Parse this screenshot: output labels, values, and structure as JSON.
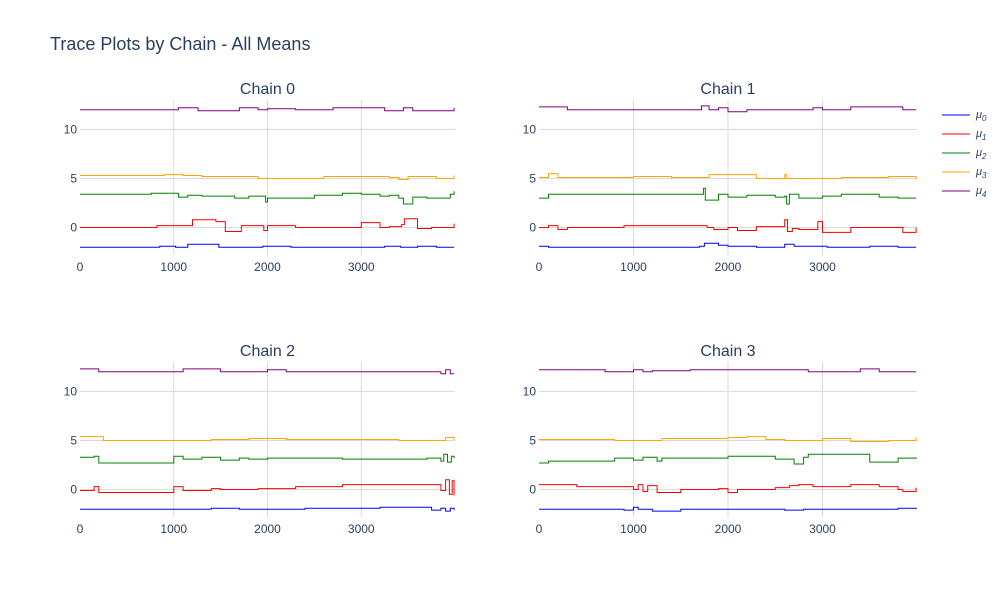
{
  "figure": {
    "title": "Trace Plots by Chain - All Means"
  },
  "chart_data": {
    "type": "line",
    "title": "Trace Plots by Chain - All Means",
    "legend_position": "right",
    "grid": true,
    "x_ticks": [
      0,
      1000,
      2000,
      3000
    ],
    "y_ticks": [
      0,
      5,
      10
    ],
    "xlim": [
      0,
      4000
    ],
    "ylim": [
      -2.8,
      13.0
    ],
    "series_meta": [
      {
        "name": "μ",
        "sub": "0",
        "color": "#0000ff"
      },
      {
        "name": "μ",
        "sub": "1",
        "color": "#ff0000"
      },
      {
        "name": "μ",
        "sub": "2",
        "color": "#008000"
      },
      {
        "name": "μ",
        "sub": "3",
        "color": "#ffa500"
      },
      {
        "name": "μ",
        "sub": "4",
        "color": "#800080"
      }
    ],
    "subplots": [
      {
        "title": "Chain 0",
        "series": [
          {
            "x": [
              0,
              850,
              1020,
              1150,
              1400,
              1480,
              1600,
              1950,
              2250,
              2700,
              3000,
              3250,
              3350,
              3420,
              3520,
              3600,
              3800,
              3990
            ],
            "y": [
              -2.0,
              -1.9,
              -2.0,
              -1.7,
              -1.7,
              -2.0,
              -2.0,
              -1.9,
              -2.0,
              -2.0,
              -2.0,
              -1.9,
              -1.9,
              -2.0,
              -2.0,
              -1.9,
              -2.0,
              -2.0
            ]
          },
          {
            "x": [
              0,
              620,
              820,
              1000,
              1200,
              1450,
              1550,
              1720,
              1900,
              1960,
              2000,
              2300,
              2800,
              3000,
              3200,
              3300,
              3430,
              3460,
              3600,
              3750,
              3850,
              3990
            ],
            "y": [
              0.0,
              0.0,
              0.2,
              0.2,
              0.8,
              0.6,
              -0.4,
              0.2,
              0.2,
              -0.3,
              0.2,
              0.0,
              0.0,
              0.5,
              0.0,
              0.1,
              0.3,
              0.9,
              -0.1,
              0.0,
              0.0,
              0.4
            ]
          },
          {
            "x": [
              0,
              600,
              760,
              1000,
              1050,
              1150,
              1300,
              1650,
              1800,
              1950,
              1980,
              2000,
              2200,
              2500,
              2800,
              3000,
              3200,
              3300,
              3400,
              3450,
              3550,
              3700,
              3850,
              3950,
              3990
            ],
            "y": [
              3.4,
              3.4,
              3.5,
              3.5,
              3.1,
              3.3,
              3.2,
              3.0,
              3.2,
              3.2,
              2.6,
              3.0,
              3.0,
              3.3,
              3.5,
              3.4,
              3.2,
              3.3,
              3.0,
              2.4,
              3.1,
              3.0,
              3.0,
              3.4,
              3.7
            ]
          },
          {
            "x": [
              0,
              700,
              900,
              1100,
              1300,
              1600,
              1900,
              2200,
              2600,
              3000,
              3300,
              3400,
              3500,
              3800,
              3990
            ],
            "y": [
              5.3,
              5.3,
              5.4,
              5.3,
              5.2,
              5.2,
              5.0,
              5.0,
              5.2,
              5.2,
              5.1,
              4.9,
              5.2,
              5.0,
              5.3
            ]
          },
          {
            "x": [
              0,
              800,
              1050,
              1200,
              1260,
              1500,
              1700,
              1900,
              2000,
              2300,
              2700,
              3000,
              3250,
              3450,
              3550,
              3750,
              3990
            ],
            "y": [
              12.0,
              12.0,
              12.2,
              12.2,
              11.9,
              11.9,
              12.2,
              12.0,
              12.1,
              12.0,
              12.2,
              12.2,
              11.9,
              12.2,
              11.9,
              11.9,
              12.2
            ]
          }
        ]
      },
      {
        "title": "Chain 1",
        "series": [
          {
            "x": [
              0,
              100,
              300,
              800,
              1300,
              1700,
              1750,
              1900,
              2000,
              2300,
              2600,
              2700,
              2950,
              3050,
              3500,
              3700,
              3800,
              3990
            ],
            "y": [
              -1.9,
              -2.0,
              -2.0,
              -2.0,
              -2.0,
              -1.9,
              -1.6,
              -1.8,
              -1.9,
              -2.0,
              -1.7,
              -1.9,
              -1.9,
              -2.0,
              -1.9,
              -1.9,
              -2.0,
              -2.0
            ]
          },
          {
            "x": [
              0,
              100,
              200,
              300,
              600,
              900,
              1300,
              1600,
              1780,
              1850,
              2000,
              2100,
              2300,
              2600,
              2630,
              2680,
              2750,
              2950,
              3000,
              3300,
              3700,
              3850,
              3990
            ],
            "y": [
              0.0,
              0.2,
              -0.2,
              0.0,
              0.0,
              0.2,
              0.2,
              0.2,
              0.0,
              -0.2,
              0.0,
              -0.3,
              0.1,
              0.8,
              -0.4,
              -0.1,
              -0.2,
              0.6,
              -0.5,
              0.0,
              0.0,
              -0.5,
              0.0
            ]
          },
          {
            "x": [
              0,
              100,
              200,
              600,
              1000,
              1400,
              1740,
              1760,
              1800,
              1900,
              2000,
              2200,
              2500,
              2600,
              2620,
              2650,
              2750,
              3000,
              3200,
              3600,
              3800,
              3990
            ],
            "y": [
              3.0,
              3.4,
              3.4,
              3.4,
              3.4,
              3.4,
              4.0,
              2.8,
              2.8,
              3.4,
              3.1,
              3.3,
              3.1,
              3.2,
              2.4,
              3.4,
              3.0,
              3.2,
              3.4,
              3.1,
              3.0,
              3.0
            ]
          },
          {
            "x": [
              0,
              100,
              200,
              300,
              600,
              1000,
              1400,
              1800,
              2300,
              2600,
              2620,
              2800,
              3200,
              3700,
              3990
            ],
            "y": [
              5.1,
              5.5,
              5.1,
              5.1,
              5.1,
              5.2,
              5.1,
              5.4,
              5.0,
              5.4,
              5.0,
              5.0,
              5.1,
              5.2,
              4.9
            ]
          },
          {
            "x": [
              0,
              200,
              300,
              800,
              1400,
              1700,
              1720,
              1800,
              1900,
              2000,
              2200,
              2600,
              2900,
              3000,
              3300,
              3600,
              3850,
              3990
            ],
            "y": [
              12.3,
              12.3,
              12.0,
              12.0,
              12.0,
              12.0,
              12.4,
              12.0,
              12.2,
              11.8,
              12.0,
              12.0,
              12.2,
              12.0,
              12.3,
              12.3,
              12.0,
              12.0
            ]
          }
        ]
      },
      {
        "title": "Chain 2",
        "series": [
          {
            "x": [
              0,
              400,
              800,
              1100,
              1400,
              1700,
              1900,
              2000,
              2400,
              2800,
              3200,
              3600,
              3750,
              3850,
              3900,
              3950,
              3990
            ],
            "y": [
              -2.0,
              -2.0,
              -2.0,
              -2.0,
              -1.9,
              -2.0,
              -2.0,
              -2.0,
              -1.9,
              -1.9,
              -1.8,
              -1.8,
              -2.1,
              -1.9,
              -2.2,
              -1.9,
              -2.1
            ]
          },
          {
            "x": [
              0,
              150,
              200,
              800,
              1000,
              1100,
              1400,
              1500,
              1900,
              2300,
              2800,
              3200,
              3700,
              3850,
              3900,
              3940,
              3970,
              3990
            ],
            "y": [
              -0.1,
              0.3,
              -0.3,
              -0.3,
              0.3,
              -0.1,
              0.1,
              0.0,
              0.1,
              0.3,
              0.5,
              0.5,
              0.5,
              -0.1,
              1.0,
              -0.5,
              0.9,
              -0.6
            ]
          },
          {
            "x": [
              0,
              150,
              200,
              600,
              1000,
              1100,
              1300,
              1500,
              1700,
              1800,
              2000,
              2300,
              2800,
              3300,
              3700,
              3850,
              3880,
              3920,
              3960,
              3990
            ],
            "y": [
              3.3,
              3.4,
              2.7,
              2.7,
              3.4,
              3.1,
              3.3,
              3.0,
              3.2,
              3.1,
              3.2,
              3.2,
              3.1,
              3.1,
              3.2,
              2.9,
              3.6,
              2.8,
              3.4,
              3.2
            ]
          },
          {
            "x": [
              0,
              150,
              250,
              600,
              1000,
              1400,
              1800,
              2200,
              2600,
              3000,
              3400,
              3800,
              3900,
              3990
            ],
            "y": [
              5.4,
              5.4,
              5.0,
              5.0,
              5.0,
              5.1,
              5.2,
              5.1,
              5.1,
              5.1,
              5.0,
              5.0,
              5.3,
              5.0
            ]
          },
          {
            "x": [
              0,
              150,
              200,
              600,
              1000,
              1100,
              1400,
              1500,
              1800,
              2000,
              2200,
              2400,
              2800,
              3300,
              3800,
              3850,
              3900,
              3950,
              3990
            ],
            "y": [
              12.3,
              12.3,
              12.0,
              12.0,
              12.0,
              12.3,
              12.3,
              12.0,
              12.0,
              12.2,
              12.0,
              12.0,
              12.0,
              12.0,
              12.0,
              11.8,
              12.2,
              11.8,
              11.8
            ]
          }
        ]
      },
      {
        "title": "Chain 3",
        "series": [
          {
            "x": [
              0,
              400,
              900,
              1000,
              1050,
              1200,
              1500,
              1800,
              2200,
              2600,
              2800,
              3000,
              3400,
              3800,
              3990
            ],
            "y": [
              -2.0,
              -2.0,
              -2.1,
              -1.8,
              -2.0,
              -2.2,
              -2.0,
              -2.0,
              -2.0,
              -2.1,
              -2.0,
              -2.0,
              -2.0,
              -1.9,
              -2.0
            ]
          },
          {
            "x": [
              0,
              400,
              700,
              1000,
              1050,
              1100,
              1150,
              1250,
              1500,
              1900,
              2000,
              2100,
              2500,
              2650,
              2750,
              2900,
              3300,
              3600,
              3800,
              3850,
              3990
            ],
            "y": [
              0.5,
              0.3,
              0.3,
              0.0,
              0.5,
              -0.2,
              0.4,
              -0.3,
              0.0,
              0.1,
              -0.3,
              0.0,
              0.2,
              0.4,
              0.5,
              0.3,
              0.5,
              0.3,
              0.0,
              -0.2,
              0.2
            ]
          },
          {
            "x": [
              0,
              100,
              400,
              800,
              1000,
              1100,
              1250,
              1300,
              1500,
              2000,
              2500,
              2700,
              2800,
              2850,
              3000,
              3300,
              3500,
              3800,
              3990
            ],
            "y": [
              2.7,
              2.9,
              2.9,
              3.2,
              3.0,
              3.3,
              2.9,
              3.2,
              3.2,
              3.4,
              3.1,
              2.6,
              3.3,
              3.6,
              3.6,
              3.6,
              2.8,
              3.2,
              3.3
            ]
          },
          {
            "x": [
              0,
              400,
              800,
              1100,
              1300,
              1600,
              2000,
              2200,
              2300,
              2400,
              2600,
              3000,
              3300,
              3700,
              3990
            ],
            "y": [
              5.1,
              5.1,
              5.0,
              5.0,
              5.2,
              5.2,
              5.3,
              5.4,
              5.4,
              5.1,
              5.0,
              5.2,
              4.9,
              5.0,
              5.3
            ]
          },
          {
            "x": [
              0,
              500,
              700,
              900,
              1000,
              1100,
              1200,
              1600,
              2000,
              2600,
              2850,
              3000,
              3400,
              3600,
              3800,
              3990
            ],
            "y": [
              12.2,
              12.2,
              12.0,
              12.0,
              12.2,
              12.0,
              12.1,
              12.2,
              12.2,
              12.2,
              12.0,
              12.0,
              12.3,
              12.0,
              12.0,
              12.0
            ]
          }
        ]
      }
    ]
  }
}
